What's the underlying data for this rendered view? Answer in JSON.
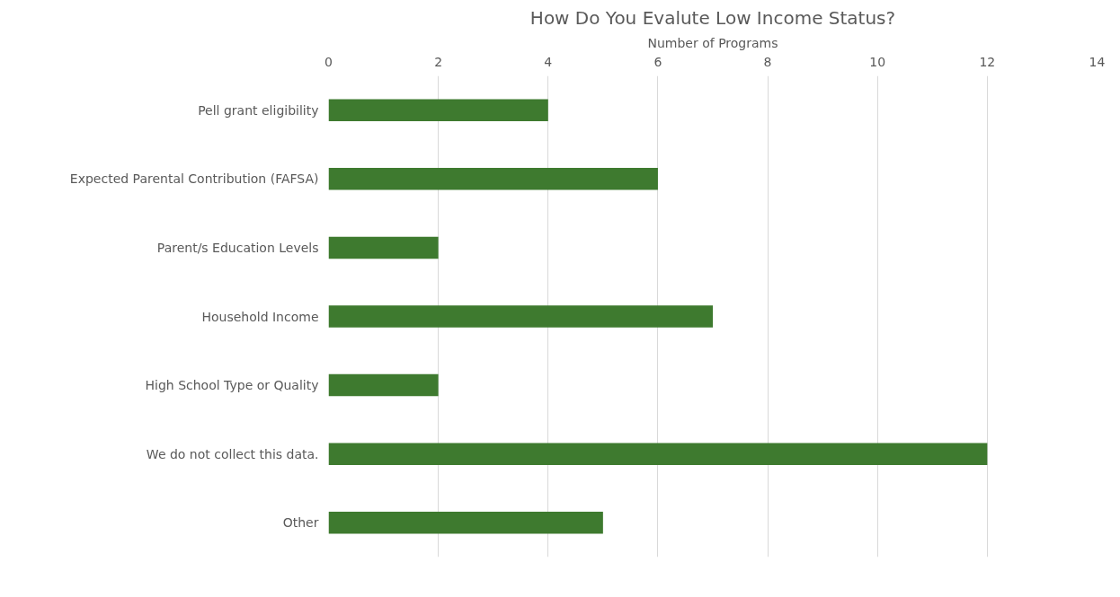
{
  "chart_data": {
    "type": "bar",
    "orientation": "horizontal",
    "title": "How Do You Evalute Low Income Status?",
    "xlabel": "Number of Programs",
    "categories": [
      "Pell grant eligibility",
      "Expected Parental Contribution (FAFSA)",
      "Parent/s Education Levels",
      "Household Income",
      "High School Type or Quality",
      "We do not collect this data.",
      "Other"
    ],
    "values": [
      4,
      6,
      2,
      7,
      2,
      12,
      5
    ],
    "color": "#3e7a2f",
    "xlim": [
      0,
      14
    ],
    "xticks": [
      0,
      2,
      4,
      6,
      8,
      10,
      12,
      14
    ],
    "grid": "x"
  }
}
